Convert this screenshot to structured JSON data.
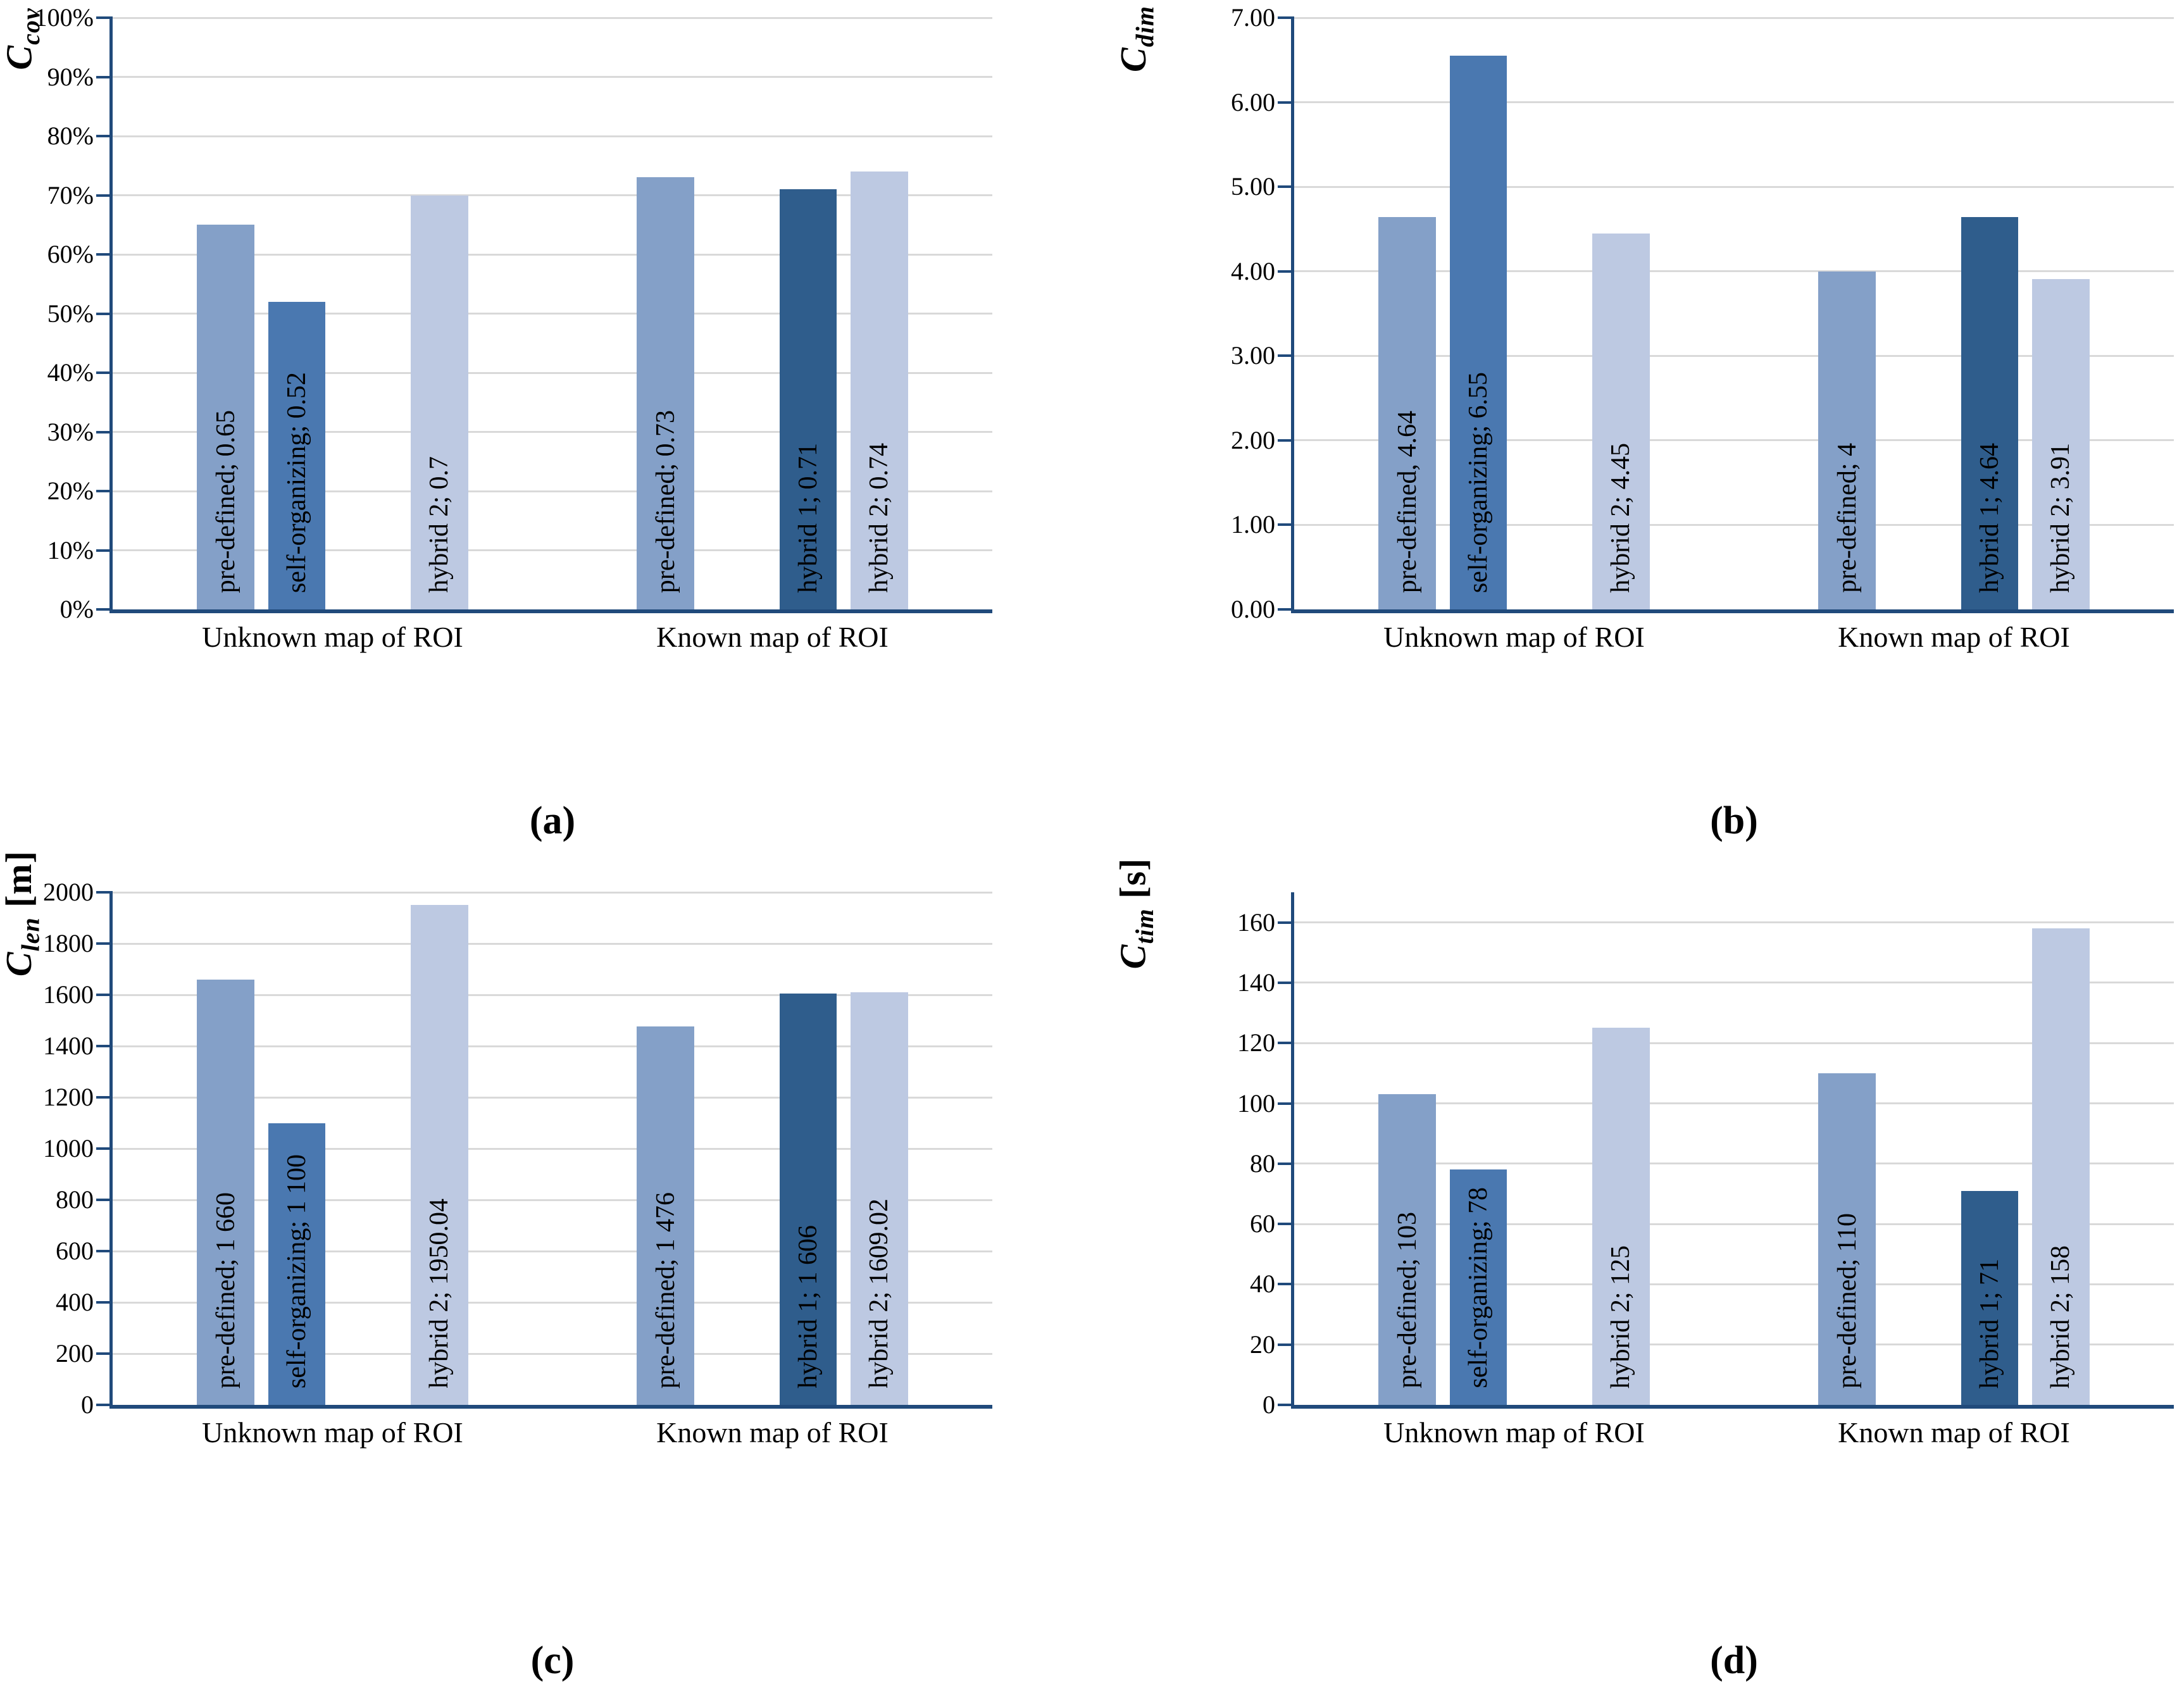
{
  "colors": {
    "series": {
      "pre-defined": "#84A0C8",
      "self-organizing": "#4A78B0",
      "hybrid 1": "#2F5D8C",
      "hybrid 2": "#BDC9E2"
    },
    "axis_line": "#204A7B",
    "gridline": "#D9D9D9",
    "text": "#000000",
    "background": "#FFFFFF"
  },
  "chart_data": [
    {
      "type": "bar",
      "panel_label": "(a)",
      "y_axis_title": {
        "symbol": "C",
        "subscript": "cov",
        "unit": ""
      },
      "y_axis": {
        "plot_max": 1,
        "grid_step": 0.1,
        "tick_labels": [
          "0%",
          "10%",
          "20%",
          "30%",
          "40%",
          "50%",
          "60%",
          "70%",
          "80%",
          "90%",
          "100%"
        ]
      },
      "x_categories": [
        "Unknown map of ROI",
        "Known map of ROI"
      ],
      "bars": [
        {
          "category": 0,
          "slot": 0,
          "series": "pre-defined",
          "value": 0.65,
          "label": "pre-defined; 0.65"
        },
        {
          "category": 0,
          "slot": 1,
          "series": "self-organizing",
          "value": 0.52,
          "label": "self-organizing; 0.52"
        },
        {
          "category": 0,
          "slot": 3,
          "series": "hybrid 2",
          "value": 0.7,
          "label": "hybrid 2; 0.7"
        },
        {
          "category": 1,
          "slot": 0,
          "series": "pre-defined",
          "value": 0.73,
          "label": "pre-defined; 0.73"
        },
        {
          "category": 1,
          "slot": 2,
          "series": "hybrid 1",
          "value": 0.71,
          "label": "hybrid 1; 0.71"
        },
        {
          "category": 1,
          "slot": 3,
          "series": "hybrid 2",
          "value": 0.74,
          "label": "hybrid 2; 0.74"
        }
      ]
    },
    {
      "type": "bar",
      "panel_label": "(b)",
      "y_axis_title": {
        "symbol": "C",
        "subscript": "dim",
        "unit": ""
      },
      "y_axis": {
        "plot_max": 7,
        "grid_step": 1,
        "tick_labels": [
          "0.00",
          "1.00",
          "2.00",
          "3.00",
          "4.00",
          "5.00",
          "6.00",
          "7.00"
        ]
      },
      "x_categories": [
        "Unknown map of ROI",
        "Known map of ROI"
      ],
      "bars": [
        {
          "category": 0,
          "slot": 0,
          "series": "pre-defined",
          "value": 4.64,
          "label": "pre-defined, 4.64"
        },
        {
          "category": 0,
          "slot": 1,
          "series": "self-organizing",
          "value": 6.55,
          "label": "self-organizing; 6.55"
        },
        {
          "category": 0,
          "slot": 3,
          "series": "hybrid 2",
          "value": 4.45,
          "label": "hybrid 2; 4.45"
        },
        {
          "category": 1,
          "slot": 0,
          "series": "pre-defined",
          "value": 4,
          "label": "pre-defined; 4"
        },
        {
          "category": 1,
          "slot": 2,
          "series": "hybrid 1",
          "value": 4.64,
          "label": "hybrid 1; 4.64"
        },
        {
          "category": 1,
          "slot": 3,
          "series": "hybrid 2",
          "value": 3.91,
          "label": "hybrid 2; 3.91"
        }
      ]
    },
    {
      "type": "bar",
      "panel_label": "(c)",
      "y_axis_title": {
        "symbol": "C",
        "subscript": "len",
        "unit": "[m]"
      },
      "y_axis": {
        "plot_max": 2000,
        "grid_step": 200,
        "tick_labels": [
          "0",
          "200",
          "400",
          "600",
          "800",
          "1000",
          "1200",
          "1400",
          "1600",
          "1800",
          "2000"
        ]
      },
      "x_categories": [
        "Unknown map of ROI",
        "Known map of ROI"
      ],
      "bars": [
        {
          "category": 0,
          "slot": 0,
          "series": "pre-defined",
          "value": 1660,
          "label": "pre-defined; 1 660"
        },
        {
          "category": 0,
          "slot": 1,
          "series": "self-organizing",
          "value": 1100,
          "label": "self-organizing; 1 100"
        },
        {
          "category": 0,
          "slot": 3,
          "series": "hybrid 2",
          "value": 1950.04,
          "label": "hybrid 2; 1950.04"
        },
        {
          "category": 1,
          "slot": 0,
          "series": "pre-defined",
          "value": 1476,
          "label": "pre-defined; 1 476"
        },
        {
          "category": 1,
          "slot": 2,
          "series": "hybrid 1",
          "value": 1606,
          "label": "hybrid 1; 1 606"
        },
        {
          "category": 1,
          "slot": 3,
          "series": "hybrid 2",
          "value": 1609.02,
          "label": "hybrid 2; 1609.02"
        }
      ]
    },
    {
      "type": "bar",
      "panel_label": "(d)",
      "y_axis_title": {
        "symbol": "C",
        "subscript": "tim",
        "unit": "[s]"
      },
      "y_axis": {
        "plot_max": 170,
        "grid_step": 20,
        "tick_labels": [
          "0",
          "20",
          "40",
          "60",
          "80",
          "100",
          "120",
          "140",
          "160"
        ]
      },
      "x_categories": [
        "Unknown map of ROI",
        "Known map of ROI"
      ],
      "bars": [
        {
          "category": 0,
          "slot": 0,
          "series": "pre-defined",
          "value": 103,
          "label": "pre-defined; 103"
        },
        {
          "category": 0,
          "slot": 1,
          "series": "self-organizing",
          "value": 78,
          "label": "self-organizing; 78"
        },
        {
          "category": 0,
          "slot": 3,
          "series": "hybrid 2",
          "value": 125,
          "label": "hybrid 2; 125"
        },
        {
          "category": 1,
          "slot": 0,
          "series": "pre-defined",
          "value": 110,
          "label": "pre-defined; 110"
        },
        {
          "category": 1,
          "slot": 2,
          "series": "hybrid 1",
          "value": 71,
          "label": "hybrid 1; 71"
        },
        {
          "category": 1,
          "slot": 3,
          "series": "hybrid 2",
          "value": 158,
          "label": "hybrid 2; 158"
        }
      ]
    }
  ]
}
